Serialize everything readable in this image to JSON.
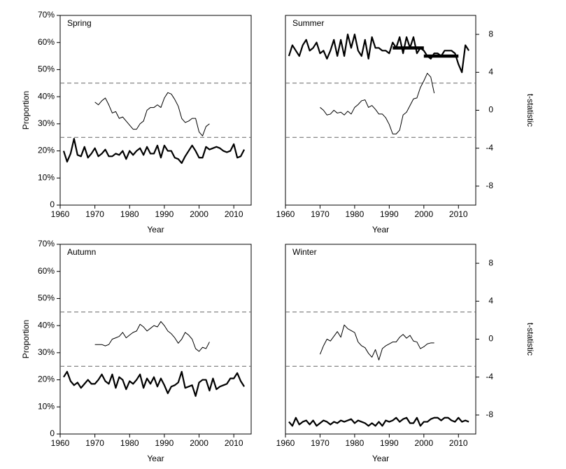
{
  "chart_data": [
    {
      "type": "line",
      "title": "Spring",
      "xlabel": "Year",
      "ylabel": "Proportion",
      "xlim": [
        1960,
        2015
      ],
      "xticks": [
        1960,
        1970,
        1980,
        1990,
        2000,
        2010
      ],
      "ylim": [
        0,
        70
      ],
      "y2lim": [
        -10,
        10
      ],
      "yticks": [
        {
          "value": 0,
          "label": "0"
        },
        {
          "value": 10,
          "label": "10%"
        },
        {
          "value": 20,
          "label": "20%"
        },
        {
          "value": 30,
          "label": "30%"
        },
        {
          "value": 40,
          "label": "40%"
        },
        {
          "value": 50,
          "label": "50%"
        },
        {
          "value": 60,
          "label": "60%"
        },
        {
          "value": 70,
          "label": "70%"
        }
      ],
      "reference_lines": [
        25,
        45
      ],
      "series": [
        {
          "color": "#000000",
          "axis": "y",
          "x": [
            1961,
            1962,
            1963,
            1964,
            1965,
            1966,
            1967,
            1968,
            1969,
            1970,
            1971,
            1972,
            1973,
            1974,
            1975,
            1976,
            1977,
            1978,
            1979,
            1980,
            1981,
            1982,
            1983,
            1984,
            1985,
            1986,
            1987,
            1988,
            1989,
            1990,
            1991,
            1992,
            1993,
            1994,
            1995,
            1996,
            1997,
            1998,
            1999,
            2000,
            2001,
            2002,
            2003,
            2004,
            2005,
            2006,
            2007,
            2008,
            2009,
            2010,
            2011,
            2012,
            2013
          ],
          "values": [
            20,
            16,
            19,
            24.5,
            18.5,
            18,
            21.5,
            17.5,
            19,
            21,
            18,
            19,
            20.5,
            18,
            18,
            19,
            18.5,
            20,
            17,
            20,
            18.5,
            20,
            21,
            18.5,
            21.5,
            19,
            19,
            22,
            17.5,
            22,
            20,
            20,
            17.5,
            17,
            15.5,
            18,
            20,
            22,
            20,
            17.5,
            17.5,
            21.5,
            20.5,
            21,
            21.5,
            21,
            20,
            19.5,
            20,
            22.5,
            17.5,
            18,
            20.5
          ]
        },
        {
          "color": "#000000",
          "axis": "y2",
          "x": [
            1970,
            1971,
            1972,
            1973,
            1974,
            1975,
            1976,
            1977,
            1978,
            1979,
            1980,
            1981,
            1982,
            1983,
            1984,
            1985,
            1986,
            1987,
            1988,
            1989,
            1990,
            1991,
            1992,
            1993,
            1994,
            1995,
            1996,
            1997,
            1998,
            1999,
            2000,
            2001,
            2002,
            2003
          ],
          "values": [
            0.86,
            0.57,
            1.0,
            1.29,
            0.57,
            -0.29,
            -0.14,
            -0.86,
            -0.71,
            -1.14,
            -1.57,
            -2.0,
            -2.0,
            -1.43,
            -1.14,
            0,
            0.29,
            0.29,
            0.57,
            0.29,
            1.29,
            1.86,
            1.71,
            1.14,
            0.43,
            -0.86,
            -1.29,
            -1.14,
            -0.86,
            -0.86,
            -2.29,
            -2.71,
            -1.71,
            -1.43
          ]
        }
      ]
    },
    {
      "type": "line",
      "title": "Summer",
      "xlabel": "Year",
      "ylabel": "t-statistic",
      "xlim": [
        1960,
        2015
      ],
      "xticks": [
        1960,
        1970,
        1980,
        1990,
        2000,
        2010
      ],
      "ylim": [
        0,
        70
      ],
      "y2lim": [
        -10,
        10
      ],
      "y2ticks": [
        -8,
        -4,
        0,
        4,
        8
      ],
      "reference_lines": [
        25,
        45
      ],
      "segments": [
        {
          "x": [
            1991,
            2000
          ],
          "value": 58
        },
        {
          "x": [
            2000,
            2010
          ],
          "value": 55
        }
      ],
      "series": [
        {
          "color": "#000000",
          "axis": "y",
          "x": [
            1961,
            1962,
            1963,
            1964,
            1965,
            1966,
            1967,
            1968,
            1969,
            1970,
            1971,
            1972,
            1973,
            1974,
            1975,
            1976,
            1977,
            1978,
            1979,
            1980,
            1981,
            1982,
            1983,
            1984,
            1985,
            1986,
            1987,
            1988,
            1989,
            1990,
            1991,
            1992,
            1993,
            1994,
            1995,
            1996,
            1997,
            1998,
            1999,
            2000,
            2001,
            2002,
            2003,
            2004,
            2005,
            2006,
            2007,
            2008,
            2009,
            2010,
            2011,
            2012,
            2013
          ],
          "values": [
            55,
            59,
            57,
            55,
            59,
            61,
            57,
            58,
            60,
            56,
            57,
            54,
            57,
            61,
            55,
            61,
            55,
            63,
            58,
            63,
            57,
            55,
            61,
            54,
            62,
            58,
            58,
            57,
            57,
            56,
            60,
            58,
            62,
            56,
            62,
            58,
            62,
            56,
            58,
            57,
            55,
            54,
            56,
            56,
            55,
            57,
            57,
            57,
            56,
            52,
            49,
            59,
            57
          ]
        },
        {
          "color": "#000000",
          "axis": "y2",
          "x": [
            1970,
            1971,
            1972,
            1973,
            1974,
            1975,
            1976,
            1977,
            1978,
            1979,
            1980,
            1981,
            1982,
            1983,
            1984,
            1985,
            1986,
            1987,
            1988,
            1989,
            1990,
            1991,
            1992,
            1993,
            1994,
            1995,
            1996,
            1997,
            1998,
            1999,
            2000,
            2001,
            2002,
            2003
          ],
          "values": [
            0.3,
            0,
            -0.5,
            -0.4,
            0,
            -0.3,
            -0.2,
            -0.5,
            -0.1,
            -0.4,
            0.3,
            0.6,
            1.0,
            1.1,
            0.3,
            0.5,
            0.1,
            -0.4,
            -0.4,
            -0.8,
            -1.5,
            -2.5,
            -2.5,
            -2.1,
            -0.5,
            -0.2,
            0.5,
            1.2,
            1.3,
            2.4,
            3.1,
            3.9,
            3.5,
            1.8
          ]
        }
      ]
    },
    {
      "type": "line",
      "title": "Autumn",
      "xlabel": "Year",
      "ylabel": "Proportion",
      "xlim": [
        1960,
        2015
      ],
      "xticks": [
        1960,
        1970,
        1980,
        1990,
        2000,
        2010
      ],
      "ylim": [
        0,
        70
      ],
      "y2lim": [
        -10,
        10
      ],
      "yticks": [
        {
          "value": 0,
          "label": "0"
        },
        {
          "value": 10,
          "label": "10%"
        },
        {
          "value": 20,
          "label": "20%"
        },
        {
          "value": 30,
          "label": "30%"
        },
        {
          "value": 40,
          "label": "40%"
        },
        {
          "value": 50,
          "label": "50%"
        },
        {
          "value": 60,
          "label": "60%"
        },
        {
          "value": 70,
          "label": "70%"
        }
      ],
      "reference_lines": [
        25,
        45
      ],
      "series": [
        {
          "color": "#000000",
          "axis": "y",
          "x": [
            1961,
            1962,
            1963,
            1964,
            1965,
            1966,
            1967,
            1968,
            1969,
            1970,
            1971,
            1972,
            1973,
            1974,
            1975,
            1976,
            1977,
            1978,
            1979,
            1980,
            1981,
            1982,
            1983,
            1984,
            1985,
            1986,
            1987,
            1988,
            1989,
            1990,
            1991,
            1992,
            1993,
            1994,
            1995,
            1996,
            1997,
            1998,
            1999,
            2000,
            2001,
            2002,
            2003,
            2004,
            2005,
            2006,
            2007,
            2008,
            2009,
            2010,
            2011,
            2012,
            2013
          ],
          "values": [
            21,
            23,
            19.5,
            18,
            19,
            17,
            18.5,
            20,
            18.5,
            18.5,
            20,
            22,
            19.5,
            18.5,
            22,
            17,
            21,
            20,
            16.5,
            19.5,
            18.5,
            20,
            22,
            17,
            20.5,
            18.5,
            21,
            17.5,
            20.5,
            18,
            15,
            17.5,
            18,
            19,
            23,
            17,
            17.5,
            18,
            14,
            19,
            20,
            20,
            16,
            20.5,
            16.5,
            17.5,
            18,
            18.5,
            20.5,
            20.5,
            22.5,
            19.5,
            17.5
          ]
        },
        {
          "color": "#000000",
          "axis": "y2",
          "x": [
            1970,
            1971,
            1972,
            1973,
            1974,
            1975,
            1976,
            1977,
            1978,
            1979,
            1980,
            1981,
            1982,
            1983,
            1984,
            1985,
            1986,
            1987,
            1988,
            1989,
            1990,
            1991,
            1992,
            1993,
            1994,
            1995,
            1996,
            1997,
            1998,
            1999,
            2000,
            2001,
            2002,
            2003
          ],
          "values": [
            -0.57,
            -0.57,
            -0.57,
            -0.71,
            -0.57,
            0,
            0.14,
            0.29,
            0.71,
            0.14,
            0.43,
            0.71,
            0.86,
            1.57,
            1.29,
            0.86,
            1.14,
            1.43,
            1.29,
            1.86,
            1.43,
            0.86,
            0.57,
            0.14,
            -0.43,
            0,
            0.71,
            0.43,
            0,
            -1.0,
            -1.29,
            -0.86,
            -1.0,
            -0.29
          ]
        }
      ]
    },
    {
      "type": "line",
      "title": "Winter",
      "xlabel": "Year",
      "ylabel": "t-statistic",
      "xlim": [
        1960,
        2015
      ],
      "xticks": [
        1960,
        1970,
        1980,
        1990,
        2000,
        2010
      ],
      "ylim": [
        0,
        70
      ],
      "y2lim": [
        -10,
        10
      ],
      "y2ticks": [
        -8,
        -4,
        0,
        4,
        8
      ],
      "reference_lines": [
        25,
        45
      ],
      "series": [
        {
          "color": "#000000",
          "axis": "y",
          "x": [
            1961,
            1962,
            1963,
            1964,
            1965,
            1966,
            1967,
            1968,
            1969,
            1970,
            1971,
            1972,
            1973,
            1974,
            1975,
            1976,
            1977,
            1978,
            1979,
            1980,
            1981,
            1982,
            1983,
            1984,
            1985,
            1986,
            1987,
            1988,
            1989,
            1990,
            1991,
            1992,
            1993,
            1994,
            1995,
            1996,
            1997,
            1998,
            1999,
            2000,
            2001,
            2002,
            2003,
            2004,
            2005,
            2006,
            2007,
            2008,
            2009,
            2010,
            2011,
            2012,
            2013
          ],
          "values": [
            4.5,
            3,
            6,
            3.5,
            4.5,
            5,
            3.5,
            5,
            3,
            4,
            5,
            4.5,
            3.5,
            4.5,
            4,
            5,
            4.5,
            5,
            5.5,
            4,
            5,
            4.5,
            4,
            3,
            4,
            3,
            4.5,
            3,
            5,
            4.5,
            5,
            6,
            4.5,
            5.5,
            6,
            4,
            4,
            6,
            3,
            4.5,
            4.5,
            5.5,
            6,
            6,
            5,
            6,
            6,
            5,
            4.5,
            6,
            4.5,
            5,
            4.5
          ]
        },
        {
          "color": "#000000",
          "axis": "y2",
          "x": [
            1970,
            1971,
            1972,
            1973,
            1974,
            1975,
            1976,
            1977,
            1978,
            1979,
            1980,
            1981,
            1982,
            1983,
            1984,
            1985,
            1986,
            1987,
            1988,
            1989,
            1990,
            1991,
            1992,
            1993,
            1994,
            1995,
            1996,
            1997,
            1998,
            1999,
            2000,
            2001,
            2002,
            2003
          ],
          "values": [
            -1.6,
            -0.7,
            0,
            -0.2,
            0.3,
            0.8,
            0.2,
            1.5,
            1.1,
            0.9,
            0.7,
            -0.3,
            -0.7,
            -0.9,
            -1.5,
            -1.9,
            -1.1,
            -2.2,
            -1.0,
            -0.7,
            -0.5,
            -0.3,
            -0.3,
            0.2,
            0.5,
            0.1,
            0.4,
            -0.2,
            -0.3,
            -1.0,
            -0.8,
            -0.5,
            -0.4,
            -0.4
          ]
        }
      ]
    }
  ]
}
